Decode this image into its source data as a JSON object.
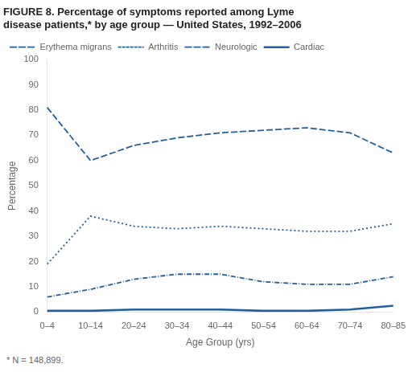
{
  "chart_data": {
    "type": "line",
    "title": [
      "FIGURE 8. Percentage of symptoms reported among Lyme",
      "disease patients,* by age group — United States, 1992–2006"
    ],
    "x_label": "Age Group (yrs)",
    "y_label": "Percentage",
    "categories": [
      "0–4",
      "10–14",
      "20–24",
      "30–34",
      "40–44",
      "50–54",
      "60–64",
      "70–74",
      "80–85"
    ],
    "series": [
      {
        "name": "Erythema migrans",
        "color": "#2060A0",
        "line_style": "dashed",
        "values": [
          81,
          60,
          66,
          69,
          71,
          72,
          73,
          71,
          63
        ]
      },
      {
        "name": "Arthritis",
        "color": "#2060A0",
        "line_style": "dotted",
        "values": [
          19,
          38,
          34,
          33,
          34,
          33,
          32,
          32,
          35
        ]
      },
      {
        "name": "Neurologic",
        "color": "#2060A0",
        "line_style": "dashdot",
        "values": [
          6,
          9,
          13,
          15,
          15,
          12,
          11,
          11,
          14
        ]
      },
      {
        "name": "Cardiac",
        "color": "#2060A0",
        "line_style": "solid",
        "values": [
          0.5,
          0.5,
          1,
          1,
          1,
          0.5,
          0.5,
          1,
          2.5
        ]
      }
    ],
    "ylim": [
      0,
      100
    ],
    "yticks": [
      0,
      10,
      20,
      30,
      40,
      50,
      60,
      70,
      80,
      90,
      100
    ],
    "grid": false,
    "legend": "upper left",
    "footnote": "* N = 148,899."
  }
}
